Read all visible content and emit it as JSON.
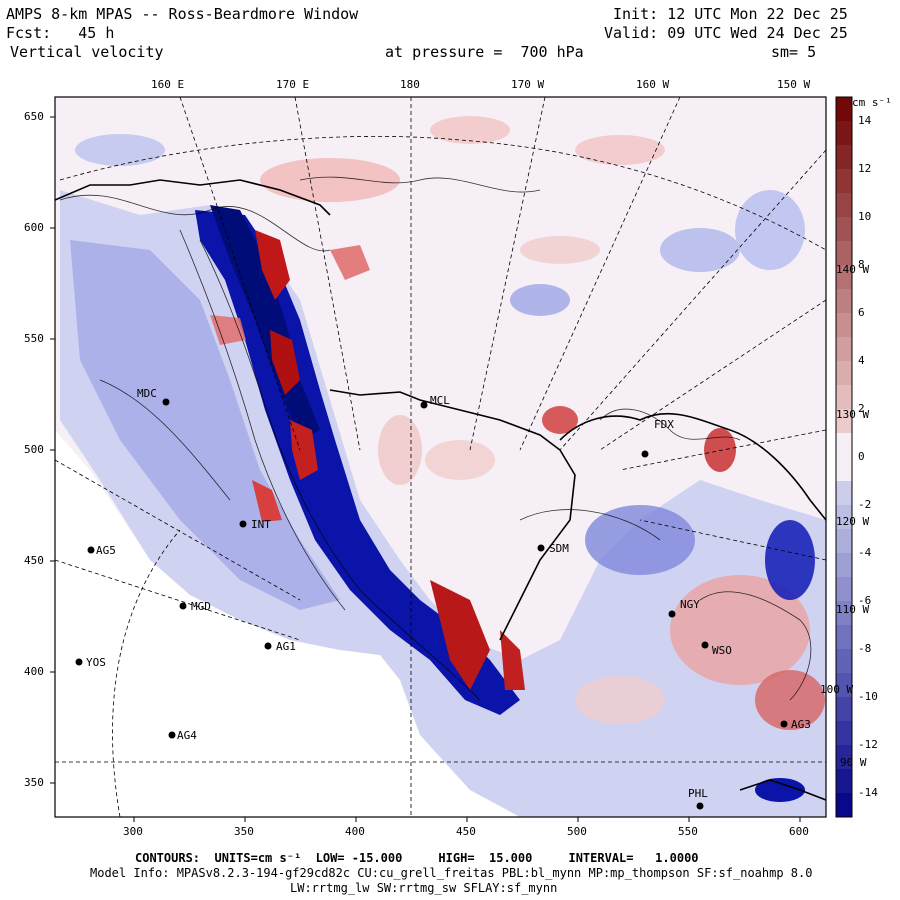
{
  "header": {
    "title": "AMPS 8-km MPAS -- Ross-Beardmore Window",
    "init": "Init: 12 UTC Mon 22 Dec 25",
    "fcst": "Fcst:   45 h",
    "valid": "Valid: 09 UTC Wed 24 Dec 25",
    "field": "Vertical velocity",
    "pressure": "at pressure =  700 hPa",
    "smooth": "sm= 5"
  },
  "top_axis": {
    "labels": [
      "160 E",
      "170 E",
      "180",
      "170 W",
      "160 W",
      "150 W"
    ]
  },
  "left_axis": {
    "ticks": [
      "650",
      "600",
      "550",
      "500",
      "450",
      "400",
      "350"
    ]
  },
  "bottom_axis": {
    "ticks": [
      "300",
      "350",
      "400",
      "450",
      "500",
      "550",
      "600"
    ]
  },
  "right_meridians": [
    "140 W",
    "130 W",
    "120 W",
    "110 W",
    "100 W",
    "90 W"
  ],
  "stations": [
    "MDC",
    "MCL",
    "FDX",
    "INT",
    "AG5",
    "MGD",
    "AG1",
    "YOS",
    "AG4",
    "SDM",
    "NGY",
    "WSO",
    "PHL",
    "AG3"
  ],
  "colorbar": {
    "units": "cm s⁻¹",
    "labels": [
      "14",
      "12",
      "10",
      "8",
      "6",
      "4",
      "2",
      "0",
      "-2",
      "-4",
      "-6",
      "-8",
      "-10",
      "-12",
      "-14"
    ]
  },
  "footer": {
    "contours": "CONTOURS:  UNITS=cm s⁻¹  LOW= -15.000     HIGH=  15.000     INTERVAL=   1.0000",
    "model_info": "Model Info: MPASv8.2.3-194-gf29cd82c CU:cu_grell_freitas PBL:bl_mynn MP:mp_thompson SF:sf_noahmp 8.0",
    "model_info2": "LW:rrtmg_lw SW:rrtmg_sw SFLAY:sf_mynn"
  },
  "colors": {
    "positive": "#d62020",
    "negative": "#2030c8",
    "neutral": "#f6f0f6"
  }
}
